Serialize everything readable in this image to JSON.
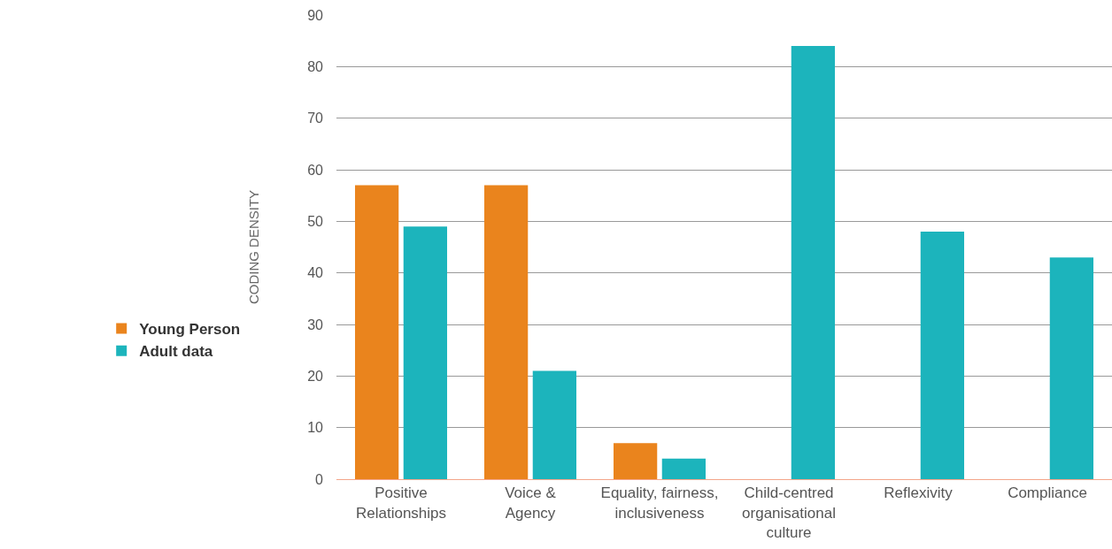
{
  "chart_data": {
    "type": "bar",
    "ylabel": "CODING DENSITY",
    "categories": [
      "Positive\nRelationships",
      "Voice &\nAgency",
      "Equality, fairness,\ninclusiveness",
      "Child-centred\norganisational\nculture",
      "Reflexivity",
      "Compliance"
    ],
    "series": [
      {
        "name": "Young Person",
        "color": "#ea841d",
        "values": [
          57,
          57,
          7,
          null,
          null,
          null
        ]
      },
      {
        "name": "Adult data",
        "color": "#1cb4bc",
        "values": [
          49,
          21,
          4,
          84,
          48,
          43
        ]
      }
    ],
    "ylim": [
      0,
      90
    ],
    "yticks": [
      0,
      10,
      20,
      30,
      40,
      50,
      60,
      70,
      80,
      90
    ],
    "grid": "y",
    "legend": "left"
  }
}
